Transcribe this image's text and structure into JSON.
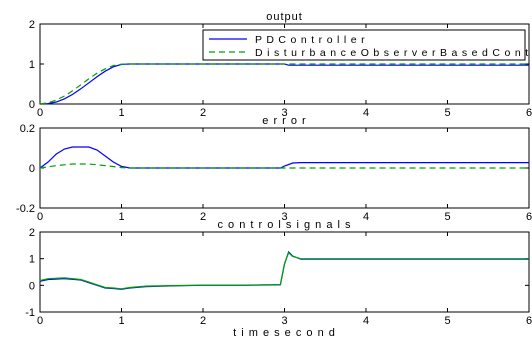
{
  "chart_data": [
    {
      "type": "line",
      "title": "output",
      "xlim": [
        0,
        6
      ],
      "ylim": [
        0,
        2
      ],
      "xticks": [
        "0",
        "1",
        "2",
        "3",
        "4",
        "5",
        "6"
      ],
      "yticks": [
        "0",
        "1",
        "2"
      ],
      "legend_position": "top-right",
      "series": [
        {
          "name": "P D  C o n t r o l l e r",
          "color": "#0000ff",
          "dash": "solid",
          "x": [
            0,
            0.1,
            0.2,
            0.3,
            0.4,
            0.5,
            0.6,
            0.7,
            0.8,
            0.9,
            1.0,
            1.1,
            2.0,
            3.0,
            3.05,
            4.0,
            5.0,
            6.0
          ],
          "y": [
            0,
            0.01,
            0.05,
            0.13,
            0.24,
            0.38,
            0.53,
            0.68,
            0.82,
            0.93,
            0.99,
            1.0,
            1.0,
            1.0,
            0.97,
            0.97,
            0.97,
            0.97
          ]
        },
        {
          "name": "D i s t u r b a n c e  O b s e r v e r  B a s e d  C o n t r o l l e r",
          "color": "#00a000",
          "dash": "dashed",
          "x": [
            0,
            0.1,
            0.2,
            0.3,
            0.4,
            0.5,
            0.6,
            0.7,
            0.8,
            0.9,
            1.0,
            1.1,
            2.0,
            3.0,
            4.0,
            5.0,
            6.0
          ],
          "y": [
            0,
            0.03,
            0.1,
            0.2,
            0.33,
            0.48,
            0.63,
            0.77,
            0.88,
            0.96,
            0.995,
            1.0,
            1.0,
            1.0,
            1.0,
            1.0,
            1.0
          ]
        }
      ]
    },
    {
      "type": "line",
      "title": "e r r o r",
      "xlim": [
        0,
        6
      ],
      "ylim": [
        -0.2,
        0.2
      ],
      "xticks": [
        "0",
        "1",
        "2",
        "3",
        "4",
        "5",
        "6"
      ],
      "yticks": [
        "-0.2",
        "0",
        "0.2"
      ],
      "series": [
        {
          "color": "#0000ff",
          "dash": "solid",
          "x": [
            0,
            0.1,
            0.2,
            0.3,
            0.4,
            0.5,
            0.6,
            0.7,
            0.8,
            0.9,
            1.0,
            1.1,
            1.2,
            2.0,
            2.95,
            3.0,
            3.1,
            3.2,
            4.0,
            5.0,
            6.0
          ],
          "y": [
            0,
            0.03,
            0.07,
            0.095,
            0.105,
            0.105,
            0.105,
            0.09,
            0.06,
            0.03,
            0.008,
            0,
            0,
            0,
            0,
            0.01,
            0.025,
            0.027,
            0.027,
            0.027,
            0.027
          ]
        },
        {
          "color": "#00a000",
          "dash": "dashed",
          "x": [
            0,
            0.2,
            0.4,
            0.6,
            0.8,
            1.0,
            1.1,
            2.0,
            3.0,
            4.0,
            5.0,
            6.0
          ],
          "y": [
            0,
            0.012,
            0.02,
            0.02,
            0.012,
            0.002,
            0,
            0,
            0,
            0,
            0,
            0
          ]
        }
      ]
    },
    {
      "type": "line",
      "title": "c o n t r o l  s i g n a l s",
      "xlabel": "t i m e  s e c o n d",
      "xlim": [
        0,
        6
      ],
      "ylim": [
        -1,
        2
      ],
      "xticks": [
        "0",
        "1",
        "2",
        "3",
        "4",
        "5",
        "6"
      ],
      "yticks": [
        "-1",
        "0",
        "1",
        "2"
      ],
      "series": [
        {
          "color": "#0000ff",
          "dash": "solid",
          "x": [
            0,
            0.1,
            0.3,
            0.5,
            0.6,
            0.7,
            0.8,
            0.9,
            1.0,
            1.1,
            1.3,
            1.6,
            2.0,
            2.5,
            2.95,
            3.0,
            3.05,
            3.1,
            3.2,
            3.5,
            4.0,
            5.0,
            6.0
          ],
          "y": [
            0.15,
            0.22,
            0.25,
            0.2,
            0.1,
            0.0,
            -0.1,
            -0.12,
            -0.15,
            -0.1,
            -0.05,
            -0.02,
            0.0,
            0.0,
            0.02,
            0.8,
            1.25,
            1.1,
            0.98,
            0.98,
            0.98,
            0.98,
            0.98
          ]
        },
        {
          "color": "#00a000",
          "dash": "solid",
          "x": [
            0,
            0.1,
            0.3,
            0.5,
            0.6,
            0.7,
            0.8,
            0.9,
            1.0,
            1.1,
            1.3,
            1.6,
            2.0,
            2.5,
            2.95,
            3.0,
            3.05,
            3.1,
            3.2,
            3.5,
            4.0,
            5.0,
            6.0
          ],
          "y": [
            0.18,
            0.25,
            0.28,
            0.22,
            0.12,
            0.02,
            -0.08,
            -0.1,
            -0.13,
            -0.08,
            -0.03,
            -0.01,
            0.01,
            0.01,
            0.03,
            0.82,
            1.22,
            1.08,
            1.0,
            1.0,
            1.0,
            1.0,
            1.0
          ]
        }
      ]
    }
  ]
}
